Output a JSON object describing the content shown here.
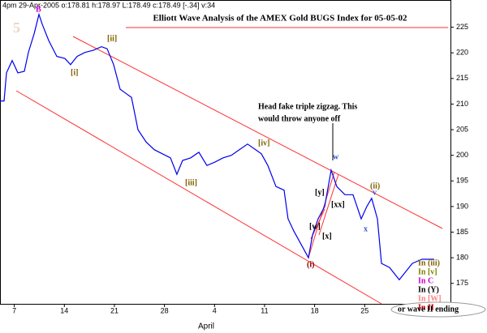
{
  "chart_data": {
    "type": "line",
    "header": "4pm 29-Apr-2005 o:178.81 h:178.97 L:178.49 c:178.49 [-.34] v:34",
    "title": "Elliott Wave Analysis of the AMEX Gold BUGS Index for 05-05-02",
    "month_label": "April",
    "x": [
      5,
      5.57,
      5.91,
      6.7,
      7.5,
      8.4,
      8.97,
      9.77,
      10.45,
      10.9,
      11.81,
      12.95,
      14.08,
      14.87,
      15.78,
      16.92,
      18.05,
      19.19,
      19.98,
      20.89,
      21.8,
      22.59,
      23.39,
      24.3,
      25.43,
      26.57,
      27.7,
      28.84,
      29.74,
      30.54,
      31.67,
      32.81,
      33.94,
      35.08,
      36.21,
      37.35,
      38.48,
      39.62,
      40.75,
      41.55,
      42.46,
      43.59,
      44.73,
      45.29,
      46.09,
      47,
      48.13,
      48.7,
      49.49,
      50.4,
      51.31,
      52.1,
      53.24,
      54.37,
      55.51,
      56.3,
      56.98,
      57.78,
      58.35,
      59.48,
      60.84,
      61.75,
      62.66,
      64.02,
      65.72
    ],
    "series": [
      {
        "color": "#0000ee",
        "values": [
          210.6,
          210.6,
          216.1,
          218.5,
          216.1,
          216.4,
          220.1,
          223.7,
          227.5,
          225.6,
          222.4,
          219.3,
          218.9,
          217.7,
          219.3,
          220.1,
          220.5,
          221.2,
          220.8,
          217.7,
          212.9,
          212.1,
          211.3,
          205.0,
          202.6,
          201.1,
          200.3,
          199.5,
          196.3,
          199.0,
          199.5,
          200.6,
          198.0,
          198.7,
          199.5,
          200.0,
          201.1,
          202.2,
          201.1,
          200.3,
          198.0,
          193.9,
          193.2,
          187.6,
          185.2,
          182.9,
          180.0,
          184.4,
          187.6,
          190.0,
          197.1,
          193.9,
          192.3,
          192.3,
          187.6,
          190.0,
          191.6,
          187.6,
          178.9,
          178.1,
          175.7,
          177.3,
          178.9,
          179.7,
          179.7
        ]
      }
    ],
    "xlim": [
      5,
      68
    ],
    "ylim": [
      171,
      230
    ],
    "xticks": [
      7,
      14,
      21,
      28,
      {
        "value": 35,
        "label": "4"
      },
      {
        "value": 42,
        "label": "11"
      },
      {
        "value": 49,
        "label": "18"
      },
      {
        "value": 56,
        "label": "25"
      }
    ],
    "yticks": [
      175,
      180,
      185,
      190,
      195,
      200,
      205,
      210,
      215,
      220,
      225
    ],
    "annotations": [
      {
        "text": "B",
        "color": "#cc00cc"
      },
      {
        "text": "5",
        "color": "#e8d8c8"
      },
      {
        "text": "[i]",
        "color": "#806000"
      },
      {
        "text": "[ii]",
        "color": "#806000"
      },
      {
        "text": "[iii]",
        "color": "#806000"
      },
      {
        "text": "[iv]",
        "color": "#806000"
      },
      {
        "text": "(i)",
        "color": "#800000"
      },
      {
        "text": "[w]",
        "color": "#000000"
      },
      {
        "text": "[x]",
        "color": "#000000"
      },
      {
        "text": "[y]",
        "color": "#000000"
      },
      {
        "text": "[xx]",
        "color": "#000000"
      },
      {
        "text": "w",
        "color": "#3355cc"
      },
      {
        "text": "x",
        "color": "#3355cc"
      },
      {
        "text": "(ii)",
        "color": "#806000"
      },
      {
        "text": "v",
        "color": "#3355cc"
      },
      {
        "text": "Head fake triple zigzag. This",
        "color": "#000000"
      },
      {
        "text": "would throw anyone off",
        "color": "#000000"
      },
      {
        "text": "In (iii)",
        "color": "#806000"
      },
      {
        "text": "In [v]",
        "color": "#808000"
      },
      {
        "text": "In C",
        "color": "#cc00cc"
      },
      {
        "text": "In (Y)",
        "color": "#000000"
      },
      {
        "text": "In [W]",
        "color": "#ff8080"
      },
      {
        "text": "In II",
        "color": "#cc0000"
      },
      {
        "text": "or wave II ending",
        "color": "#000000"
      }
    ]
  }
}
